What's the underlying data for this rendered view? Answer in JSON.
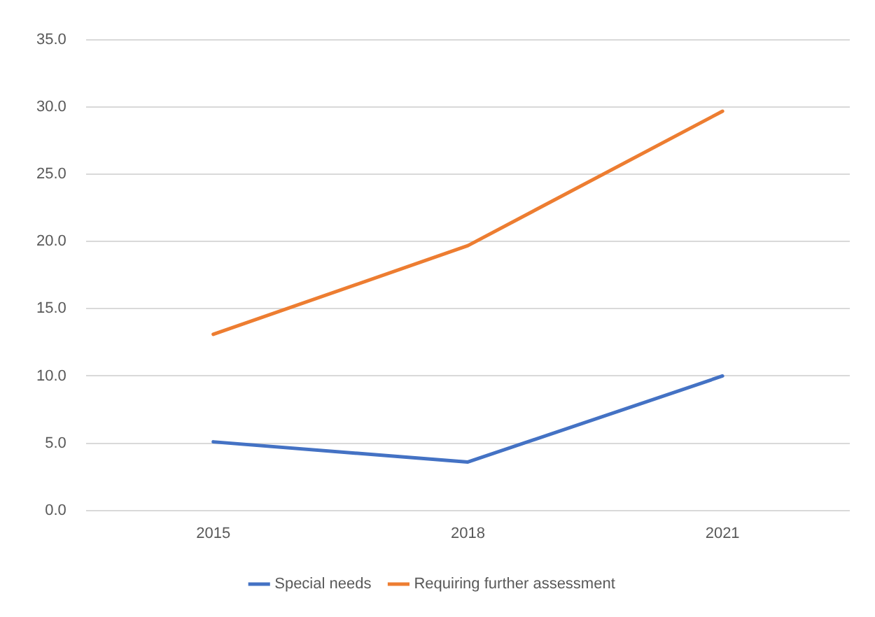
{
  "chart_data": {
    "type": "line",
    "categories": [
      "2015",
      "2018",
      "2021"
    ],
    "series": [
      {
        "name": "Special needs",
        "color": "#4472c4",
        "values": [
          5.1,
          3.6,
          10.0
        ]
      },
      {
        "name": "Requiring further assessment",
        "color": "#ed7d31",
        "values": [
          13.1,
          19.7,
          29.7
        ]
      }
    ],
    "ylim": [
      0,
      35
    ],
    "yticks": [
      {
        "value": 0,
        "label": "0.0"
      },
      {
        "value": 5,
        "label": "5.0"
      },
      {
        "value": 10,
        "label": "10.0"
      },
      {
        "value": 15,
        "label": "15.0"
      },
      {
        "value": 20,
        "label": "20.0"
      },
      {
        "value": 25,
        "label": "25.0"
      },
      {
        "value": 30,
        "label": "30.0"
      },
      {
        "value": 35,
        "label": "35.0"
      }
    ],
    "grid": "y",
    "legend": "bottom",
    "marker": "none",
    "line_style": "solid"
  }
}
